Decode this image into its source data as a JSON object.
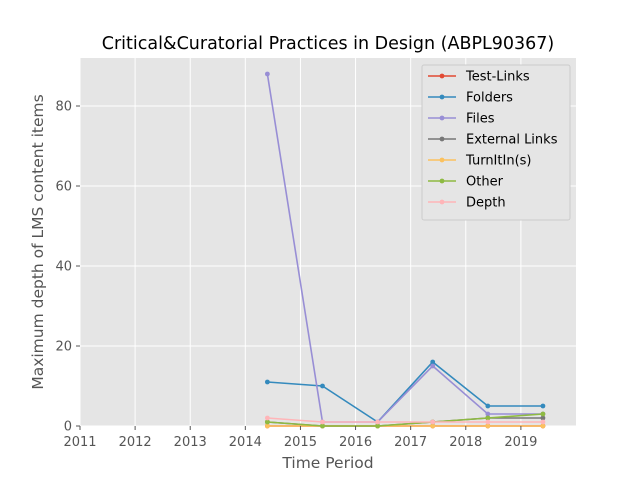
{
  "chart_data": {
    "type": "line",
    "title": "Critical&Curatorial Practices in Design (ABPL90367)",
    "xlabel": "Time Period",
    "ylabel": "Maximum depth of LMS content items",
    "xlim": [
      2011,
      2020
    ],
    "ylim": [
      0,
      92
    ],
    "xticks": [
      "2011",
      "2012",
      "2013",
      "2014",
      "2015",
      "2016",
      "2017",
      "2018",
      "2019"
    ],
    "yticks": [
      "0",
      "20",
      "40",
      "60",
      "80"
    ],
    "grid": true,
    "legend_position": "top-right",
    "x": [
      2014.4,
      2015.4,
      2016.4,
      2017.4,
      2018.4,
      2019.4
    ],
    "series": [
      {
        "name": "Test-Links",
        "color": "#e24a33",
        "values": [
          0,
          0,
          0,
          0,
          0,
          0
        ]
      },
      {
        "name": "Folders",
        "color": "#348abd",
        "values": [
          11,
          10,
          1,
          16,
          5,
          5
        ]
      },
      {
        "name": "Files",
        "color": "#988ed5",
        "values": [
          88,
          1,
          1,
          15,
          3,
          3
        ]
      },
      {
        "name": "External Links",
        "color": "#777777",
        "values": [
          1,
          0,
          0,
          1,
          2,
          2
        ]
      },
      {
        "name": "TurnItIn(s)",
        "color": "#fbc15e",
        "values": [
          0,
          0,
          0,
          0,
          0,
          0
        ]
      },
      {
        "name": "Other",
        "color": "#8eba42",
        "values": [
          1,
          0,
          0,
          1,
          2,
          3
        ]
      },
      {
        "name": "Depth",
        "color": "#ffb5b8",
        "values": [
          2,
          1,
          1,
          1,
          1,
          1
        ]
      }
    ]
  }
}
